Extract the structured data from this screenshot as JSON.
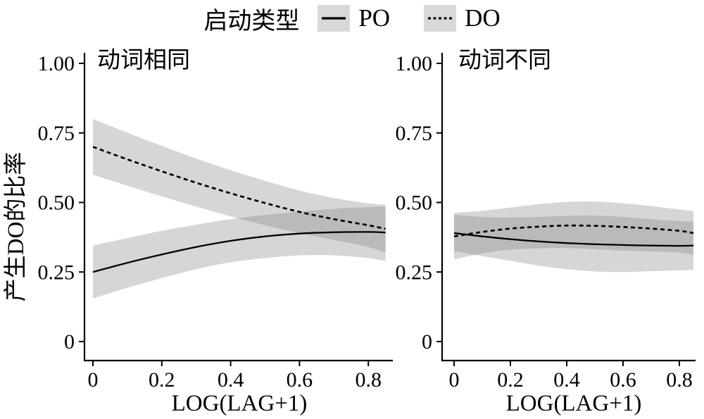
{
  "legend": {
    "title": "启动类型",
    "items": [
      {
        "label": "PO",
        "style": "solid"
      },
      {
        "label": "DO",
        "style": "dashed"
      }
    ]
  },
  "axes": {
    "y_title": "产生DO的比率",
    "x_title": "LOG(LAG+1)"
  },
  "chart_data": {
    "type": "line",
    "title": "",
    "xlabel": "LOG(LAG+1)",
    "ylabel": "产生DO的比率",
    "legend_position": "top",
    "grid": false,
    "xlim": [
      -0.025,
      0.86
    ],
    "ylim": [
      -0.068,
      1.038
    ],
    "x_ticks": [
      0,
      0.2,
      0.4,
      0.6,
      0.8
    ],
    "x_tick_labels": [
      "0",
      "0.2",
      "0.4",
      "0.6",
      "0.8"
    ],
    "y_ticks": [
      1.0,
      0.75,
      0.5,
      0.25,
      0
    ],
    "y_tick_labels": [
      "1.00",
      "0.75",
      "0.50",
      "0.25",
      "0"
    ],
    "x": [
      0,
      0.1,
      0.2,
      0.3,
      0.4,
      0.5,
      0.6,
      0.7,
      0.8,
      0.85
    ],
    "colors": {
      "line": "#000000",
      "band": "rgba(127,127,127,0.32)",
      "legend_key_bg": "#d9d9d9"
    },
    "panels": [
      {
        "title": "动词相同",
        "series": [
          {
            "name": "PO",
            "line": "solid",
            "y": [
              0.25,
              0.283,
              0.313,
              0.34,
              0.362,
              0.378,
              0.388,
              0.393,
              0.394,
              0.392
            ],
            "upper": [
              0.345,
              0.372,
              0.398,
              0.42,
              0.44,
              0.455,
              0.467,
              0.477,
              0.483,
              0.485
            ],
            "lower": [
              0.155,
              0.193,
              0.228,
              0.26,
              0.285,
              0.3,
              0.31,
              0.31,
              0.3,
              0.29
            ]
          },
          {
            "name": "DO",
            "line": "dashed",
            "y": [
              0.7,
              0.655,
              0.612,
              0.571,
              0.533,
              0.498,
              0.466,
              0.44,
              0.418,
              0.405
            ],
            "upper": [
              0.8,
              0.751,
              0.703,
              0.658,
              0.616,
              0.578,
              0.543,
              0.516,
              0.497,
              0.492
            ],
            "lower": [
              0.6,
              0.56,
              0.522,
              0.485,
              0.45,
              0.418,
              0.39,
              0.365,
              0.34,
              0.32
            ]
          }
        ]
      },
      {
        "title": "动词不同",
        "series": [
          {
            "name": "PO",
            "line": "solid",
            "y": [
              0.39,
              0.378,
              0.368,
              0.36,
              0.354,
              0.35,
              0.347,
              0.345,
              0.344,
              0.345
            ],
            "upper": [
              0.455,
              0.448,
              0.446,
              0.448,
              0.452,
              0.453,
              0.448,
              0.44,
              0.433,
              0.432
            ],
            "lower": [
              0.325,
              0.307,
              0.29,
              0.273,
              0.26,
              0.252,
              0.25,
              0.253,
              0.256,
              0.258
            ]
          },
          {
            "name": "DO",
            "line": "dashed",
            "y": [
              0.378,
              0.394,
              0.406,
              0.413,
              0.417,
              0.416,
              0.412,
              0.406,
              0.398,
              0.39
            ],
            "upper": [
              0.462,
              0.47,
              0.482,
              0.494,
              0.502,
              0.503,
              0.497,
              0.487,
              0.475,
              0.47
            ],
            "lower": [
              0.295,
              0.317,
              0.33,
              0.335,
              0.336,
              0.332,
              0.327,
              0.324,
              0.32,
              0.312
            ]
          }
        ]
      }
    ]
  }
}
